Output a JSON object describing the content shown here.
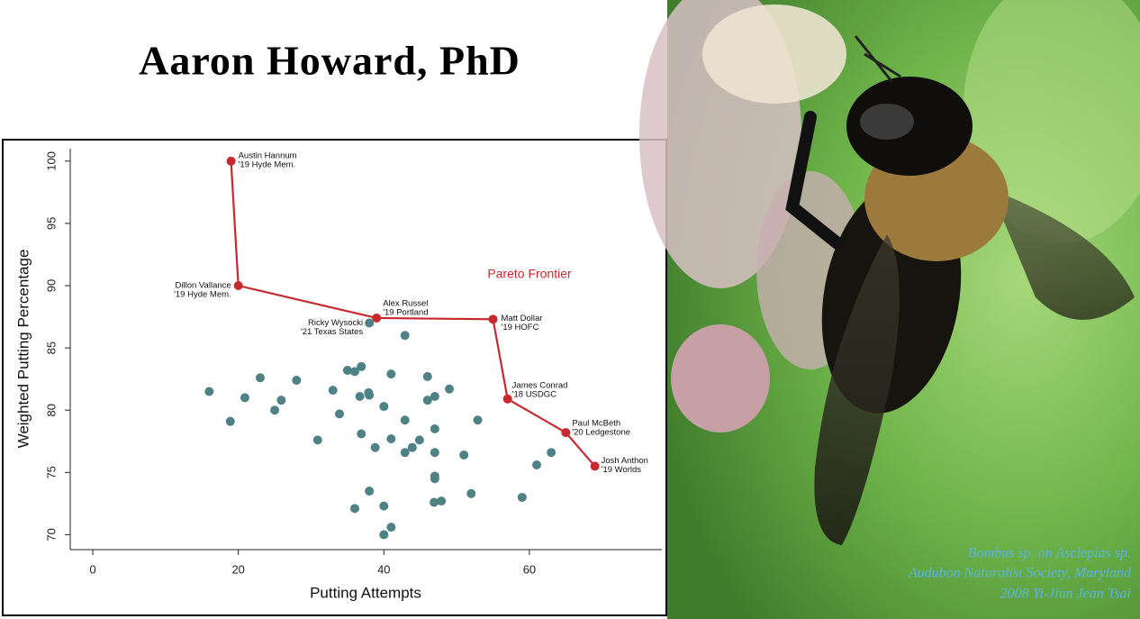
{
  "title": "Aaron Howard, PhD",
  "chart_data": {
    "type": "scatter",
    "xlabel": "Putting Attempts",
    "ylabel": "Weighted Putting Percentage",
    "xlim": [
      -3.1,
      78.2
    ],
    "ylim": [
      68.8,
      101
    ],
    "xticks": [
      0,
      20,
      40,
      60
    ],
    "yticks": [
      70,
      75,
      80,
      85,
      90,
      95,
      100
    ],
    "series": [
      {
        "name": "Pareto Frontier",
        "color": "#c62a2f",
        "connect": true,
        "x": [
          19,
          20,
          39,
          55,
          57,
          65,
          69
        ],
        "values": [
          100,
          90,
          87.4,
          87.3,
          80.9,
          78.2,
          75.5
        ],
        "labels": [
          [
            "Austin Hannum",
            "'19 Hyde Mem."
          ],
          [
            "Dillon Vallance",
            "'19 Hyde Mem."
          ],
          [
            "Alex Russel",
            "'19 Portland"
          ],
          [
            "Matt Dollar",
            "'19 HOFC"
          ],
          [
            "James Conrad",
            "'18 USDGC"
          ],
          [
            "Paul McBeth",
            "'20 Ledgestone"
          ],
          [
            "Josh Anthon",
            "'19 Worlds"
          ]
        ]
      },
      {
        "color": "#4f8287",
        "connect": false,
        "x": [
          16,
          18.9,
          20.9,
          23,
          25,
          25.9,
          28,
          30.9,
          33,
          33.9,
          35,
          36,
          36.9,
          36.7,
          36.9,
          37.9,
          38,
          38.8,
          38,
          40,
          41,
          41,
          42.9,
          42.9,
          42.9,
          43.9,
          44.9,
          46,
          46,
          47,
          47,
          47,
          47,
          47,
          46.9,
          47.9,
          49,
          51,
          52,
          52.9,
          36,
          40,
          41,
          40,
          59,
          61,
          63
        ],
        "values": [
          81.5,
          79.1,
          81,
          82.6,
          80,
          80.8,
          82.4,
          77.6,
          81.6,
          79.7,
          83.2,
          83.1,
          83.5,
          81.1,
          78.1,
          81.4,
          81.2,
          77,
          73.5,
          80.3,
          82.9,
          77.7,
          86,
          79.2,
          76.6,
          77,
          77.6,
          82.7,
          80.8,
          81.1,
          78.5,
          76.6,
          74.7,
          74.5,
          72.6,
          72.7,
          81.7,
          76.4,
          73.3,
          79.2,
          72.1,
          72.3,
          70.6,
          70,
          73,
          75.6,
          76.6
        ]
      },
      {
        "color": "#4f8287",
        "connect": false,
        "x": [
          38
        ],
        "values": [
          87
        ],
        "labels": [
          [
            "Ricky Wysocki",
            "'21 Texas States"
          ]
        ]
      }
    ]
  },
  "photo": {
    "caption": [
      "Bombus sp. on Asclepias sp.",
      "Audubon Naturalist Society, Maryland",
      "2008 Yi-Jiun Jean Tsai"
    ]
  }
}
